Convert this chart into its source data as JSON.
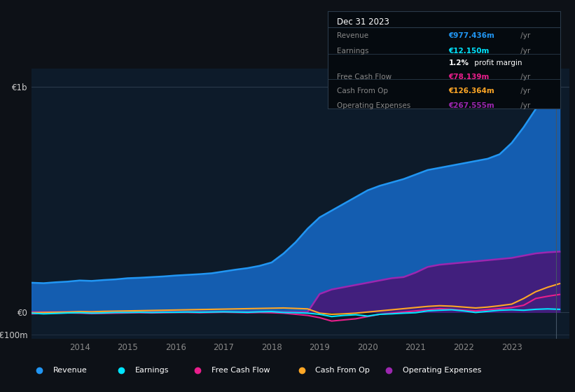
{
  "bg_color": "#0d1117",
  "chart_bg": "#0d1b2a",
  "years_x": [
    2013.0,
    2013.25,
    2013.5,
    2013.75,
    2014.0,
    2014.25,
    2014.5,
    2014.75,
    2015.0,
    2015.25,
    2015.5,
    2015.75,
    2016.0,
    2016.25,
    2016.5,
    2016.75,
    2017.0,
    2017.25,
    2017.5,
    2017.75,
    2018.0,
    2018.25,
    2018.5,
    2018.75,
    2019.0,
    2019.25,
    2019.5,
    2019.75,
    2020.0,
    2020.25,
    2020.5,
    2020.75,
    2021.0,
    2021.25,
    2021.5,
    2021.75,
    2022.0,
    2022.25,
    2022.5,
    2022.75,
    2023.0,
    2023.25,
    2023.5,
    2023.75,
    2024.0
  ],
  "revenue": [
    130,
    128,
    132,
    135,
    140,
    138,
    142,
    145,
    150,
    152,
    155,
    158,
    162,
    165,
    168,
    172,
    180,
    188,
    195,
    205,
    220,
    260,
    310,
    370,
    420,
    450,
    480,
    510,
    540,
    560,
    575,
    590,
    610,
    630,
    640,
    650,
    660,
    670,
    680,
    700,
    750,
    820,
    900,
    960,
    977
  ],
  "earnings": [
    -5,
    -8,
    -6,
    -4,
    -3,
    -5,
    -4,
    -2,
    -2,
    -1,
    -2,
    -1,
    -1,
    0,
    -1,
    0,
    1,
    0,
    -1,
    1,
    2,
    -2,
    -3,
    -5,
    -10,
    -20,
    -15,
    -12,
    -18,
    -10,
    -8,
    -5,
    -3,
    5,
    8,
    10,
    5,
    -2,
    3,
    8,
    10,
    8,
    12,
    14,
    12
  ],
  "free_cash_flow": [
    -8,
    -6,
    -5,
    -4,
    -5,
    -7,
    -6,
    -5,
    -4,
    -3,
    -4,
    -3,
    -2,
    -2,
    -3,
    -2,
    -1,
    -2,
    -3,
    -2,
    -3,
    -5,
    -10,
    -15,
    -25,
    -40,
    -35,
    -30,
    -20,
    -10,
    -5,
    0,
    5,
    10,
    15,
    12,
    8,
    5,
    10,
    15,
    20,
    30,
    60,
    70,
    78
  ],
  "cash_from_op": [
    -3,
    -2,
    -1,
    0,
    2,
    1,
    3,
    4,
    5,
    6,
    7,
    8,
    9,
    10,
    11,
    12,
    13,
    14,
    15,
    16,
    17,
    18,
    16,
    14,
    -5,
    -10,
    -8,
    -5,
    0,
    5,
    10,
    15,
    20,
    25,
    28,
    26,
    22,
    18,
    22,
    28,
    35,
    60,
    90,
    110,
    126
  ],
  "op_expenses": [
    0,
    0,
    0,
    0,
    0,
    0,
    0,
    0,
    0,
    0,
    0,
    0,
    0,
    0,
    0,
    0,
    0,
    0,
    0,
    0,
    0,
    0,
    0,
    0,
    80,
    100,
    110,
    120,
    130,
    140,
    150,
    155,
    175,
    200,
    210,
    215,
    220,
    225,
    230,
    235,
    240,
    250,
    260,
    265,
    268
  ],
  "revenue_color": "#2196f3",
  "revenue_fill": "#1565c0",
  "earnings_color": "#00e5ff",
  "free_cash_flow_color": "#e91e8c",
  "cash_from_op_color": "#ffa726",
  "op_expenses_color": "#9c27b0",
  "op_expenses_fill": "#4a1575",
  "xlim": [
    2013.0,
    2024.2
  ],
  "ylim_min": -120,
  "ylim_max": 1080,
  "zero_line_y": 0,
  "top_line_y": 1000,
  "bottom_line_y": -100,
  "xticks": [
    2014,
    2015,
    2016,
    2017,
    2018,
    2019,
    2020,
    2021,
    2022,
    2023
  ],
  "tooltip_date": "Dec 31 2023",
  "tooltip_rows": [
    {
      "label": "Revenue",
      "value": "€977.436m",
      "color": "#2196f3"
    },
    {
      "label": "Earnings",
      "value": "€12.150m",
      "color": "#00e5ff"
    },
    {
      "label": "",
      "value": "1.2% profit margin",
      "color": "#ffffff"
    },
    {
      "label": "Free Cash Flow",
      "value": "€78.139m",
      "color": "#e91e8c"
    },
    {
      "label": "Cash From Op",
      "value": "€126.364m",
      "color": "#ffa726"
    },
    {
      "label": "Operating Expenses",
      "value": "€267.555m",
      "color": "#9c27b0"
    }
  ],
  "legend_items": [
    {
      "label": "Revenue",
      "color": "#2196f3"
    },
    {
      "label": "Earnings",
      "color": "#00e5ff"
    },
    {
      "label": "Free Cash Flow",
      "color": "#e91e8c"
    },
    {
      "label": "Cash From Op",
      "color": "#ffa726"
    },
    {
      "label": "Operating Expenses",
      "color": "#9c27b0"
    }
  ]
}
